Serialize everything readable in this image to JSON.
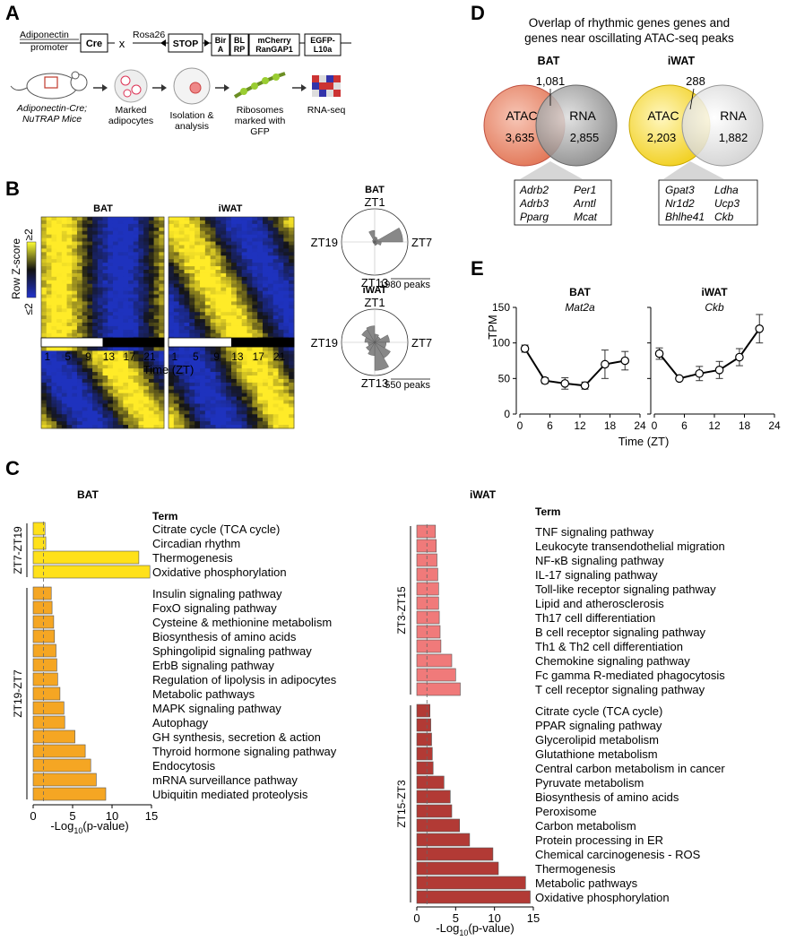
{
  "panel_labels": {
    "a": "A",
    "b": "B",
    "c": "C",
    "d": "D",
    "e": "E"
  },
  "panel_a": {
    "promoter": "Adiponectin promoter",
    "promoter_l1": "Adiponectin",
    "promoter_l2": "promoter",
    "cre": "Cre",
    "cross": "x",
    "rosa": "Rosa26",
    "stop": "STOP",
    "bira_l1": "Bir",
    "bira_l2": "A",
    "blrp_l1": "BL",
    "blrp_l2": "RP",
    "mcherry_l1": "mCherry",
    "mcherry_l2": "RanGAP1",
    "egfp_l1": "EGFP-",
    "egfp_l2": "L10a",
    "step1_l1": "Adiponectin-Cre;",
    "step1_l2": "NuTRAP Mice",
    "step2_l1": "Marked",
    "step2_l2": "adipocytes",
    "step3_l1": "Isolation &",
    "step3_l2": "analysis",
    "step4_l1": "Ribosomes",
    "step4_l2": "marked with",
    "step4_l3": "GFP",
    "step5": "RNA-seq"
  },
  "panel_b": {
    "heat_bat_title": "BAT",
    "heat_iwat_title": "iWAT",
    "zscore_label": "Row Z-score",
    "zscore_hi": "≥2",
    "zscore_lo": "≤2",
    "xticks": [
      "1",
      "5",
      "9",
      "13",
      "17",
      "21"
    ],
    "xlabel": "Time (ZT)",
    "polar": [
      {
        "title": "BAT",
        "top": "ZT1",
        "right": "ZT7",
        "bottom": "ZT13",
        "left": "ZT19",
        "scale": "1980 peaks",
        "petals": [
          0.15,
          0.12,
          0.85,
          0.2,
          0.1,
          0.1,
          0.06,
          0.05,
          0.05,
          0.06,
          0.08,
          0.35
        ]
      },
      {
        "title": "iWAT",
        "top": "ZT1",
        "right": "ZT7",
        "bottom": "ZT13",
        "left": "ZT19",
        "scale": "550 peaks",
        "petals": [
          0.25,
          0.2,
          0.45,
          0.35,
          0.55,
          0.85,
          0.4,
          0.3,
          0.2,
          0.3,
          0.45,
          0.5
        ]
      }
    ]
  },
  "panel_c": {
    "bat_title": "BAT",
    "iwat_title": "iWAT",
    "term_header": "Term",
    "xlabel_pre": "-Log",
    "xlabel_sub": "10",
    "xlabel_post": "(p-value)",
    "xticks": [
      "0",
      "5",
      "10",
      "15"
    ]
  },
  "panel_d": {
    "title_l1": "Overlap of rhythmic genes genes and",
    "title_l2": "genes near oscillating ATAC-seq peaks",
    "bat": {
      "title": "BAT",
      "atac": "ATAC",
      "rna": "RNA",
      "atac_n": "3,635",
      "overlap": "1,081",
      "rna_n": "2,855",
      "genes": [
        [
          "Adrb2",
          "Per1"
        ],
        [
          "Adrb3",
          "Arntl"
        ],
        [
          "Pparg",
          "Mcat"
        ]
      ]
    },
    "iwat": {
      "title": "iWAT",
      "atac": "ATAC",
      "rna": "RNA",
      "atac_n": "2,203",
      "overlap": "288",
      "rna_n": "1,882",
      "genes": [
        [
          "Gpat3",
          "Ldha"
        ],
        [
          "Nr1d2",
          "Ucp3"
        ],
        [
          "Bhlhe41",
          "Ckb"
        ]
      ]
    }
  },
  "panel_e": {
    "ylabel": "TPM",
    "xlabel": "Time (ZT)"
  },
  "chart_data": [
    {
      "type": "bar",
      "panel": "C",
      "tissue": "BAT",
      "title": "BAT",
      "xlabel": "-Log10(p-value)",
      "xlim": [
        0,
        15
      ],
      "groups": [
        {
          "name": "ZT7-ZT19",
          "color": "#FFE11A",
          "categories": [
            "Citrate cycle (TCA cycle)",
            "Circadian rhythm",
            "Thermogenesis",
            "Oxidative phosphorylation"
          ],
          "values": [
            1.5,
            1.6,
            13.4,
            14.8
          ]
        },
        {
          "name": "ZT19-ZT7",
          "color": "#F5A623",
          "categories": [
            "Insulin signaling pathway",
            "FoxO signaling pathway",
            "Cysteine & methionine metabolism",
            "Biosynthesis of amino acids",
            "Sphingolipid signaling pathway",
            "ErbB signaling pathway",
            "Regulation of lipolysis in adipocytes",
            "Metabolic pathways",
            "MAPK signaling pathway",
            "Autophagy",
            "GH synthesis, secretion & action",
            "Thyroid hormone signaling pathway",
            "Endocytosis",
            "mRNA surveillance pathway",
            "Ubiquitin mediated proteolysis"
          ],
          "values": [
            2.3,
            2.4,
            2.6,
            2.7,
            2.9,
            3.0,
            3.1,
            3.4,
            3.9,
            4.0,
            5.3,
            6.6,
            7.3,
            8.0,
            9.2
          ]
        }
      ]
    },
    {
      "type": "bar",
      "panel": "C",
      "tissue": "iWAT",
      "title": "iWAT",
      "xlabel": "-Log10(p-value)",
      "xlim": [
        0,
        15
      ],
      "groups": [
        {
          "name": "ZT3-ZT15",
          "color": "#F07A7A",
          "categories": [
            "TNF signaling pathway",
            "Leukocyte transendothelial migration",
            "NF-κB signaling pathway",
            "IL-17 signaling pathway",
            "Toll-like receptor signaling pathway",
            "Lipid and atherosclerosis",
            "Th17 cell differentiation",
            "B cell receptor signaling pathway",
            "Th1 & Th2 cell differentiation",
            "Chemokine signaling pathway",
            "Fc gamma R-mediated phagocytosis",
            "T cell receptor signaling pathway"
          ],
          "values": [
            2.4,
            2.5,
            2.6,
            2.7,
            2.8,
            2.8,
            2.9,
            3.0,
            3.1,
            4.5,
            5.0,
            5.6
          ]
        },
        {
          "name": "ZT15-ZT3",
          "color": "#B23A35",
          "categories": [
            "Citrate cycle (TCA cycle)",
            "PPAR signaling pathway",
            "Glycerolipid metabolism",
            "Glutathione metabolism",
            "Central carbon metabolism in cancer",
            "Pyruvate metabolism",
            "Biosynthesis of amino acids",
            "Peroxisome",
            "Carbon metabolism",
            "Protein processing in ER",
            "Chemical carcinogenesis - ROS",
            "Thermogenesis",
            "Metabolic pathways",
            "Oxidative phosphorylation"
          ],
          "values": [
            1.7,
            1.8,
            1.9,
            2.0,
            2.1,
            3.5,
            4.3,
            4.5,
            5.5,
            6.8,
            9.8,
            10.5,
            14.0,
            14.6
          ]
        }
      ]
    },
    {
      "type": "line",
      "panel": "E",
      "subplots": [
        {
          "title": "BAT",
          "gene": "Mat2a",
          "x": [
            1,
            5,
            9,
            13,
            17,
            21
          ],
          "y": [
            92,
            47,
            43,
            40,
            70,
            75
          ],
          "err": [
            5,
            4,
            8,
            5,
            20,
            13
          ],
          "ylim": [
            0,
            150
          ],
          "xlim": [
            0,
            24
          ],
          "xticks": [
            0,
            6,
            12,
            18,
            24
          ],
          "yticks": [
            0,
            50,
            100,
            150
          ]
        },
        {
          "title": "iWAT",
          "gene": "Ckb",
          "x": [
            1,
            5,
            9,
            13,
            17,
            21
          ],
          "y": [
            85,
            50,
            57,
            62,
            80,
            120
          ],
          "err": [
            8,
            2,
            10,
            12,
            12,
            20
          ],
          "ylim": [
            0,
            150
          ],
          "xlim": [
            0,
            24
          ],
          "xticks": [
            0,
            6,
            12,
            18,
            24
          ],
          "yticks": [
            0,
            50,
            100,
            150
          ]
        }
      ]
    }
  ]
}
